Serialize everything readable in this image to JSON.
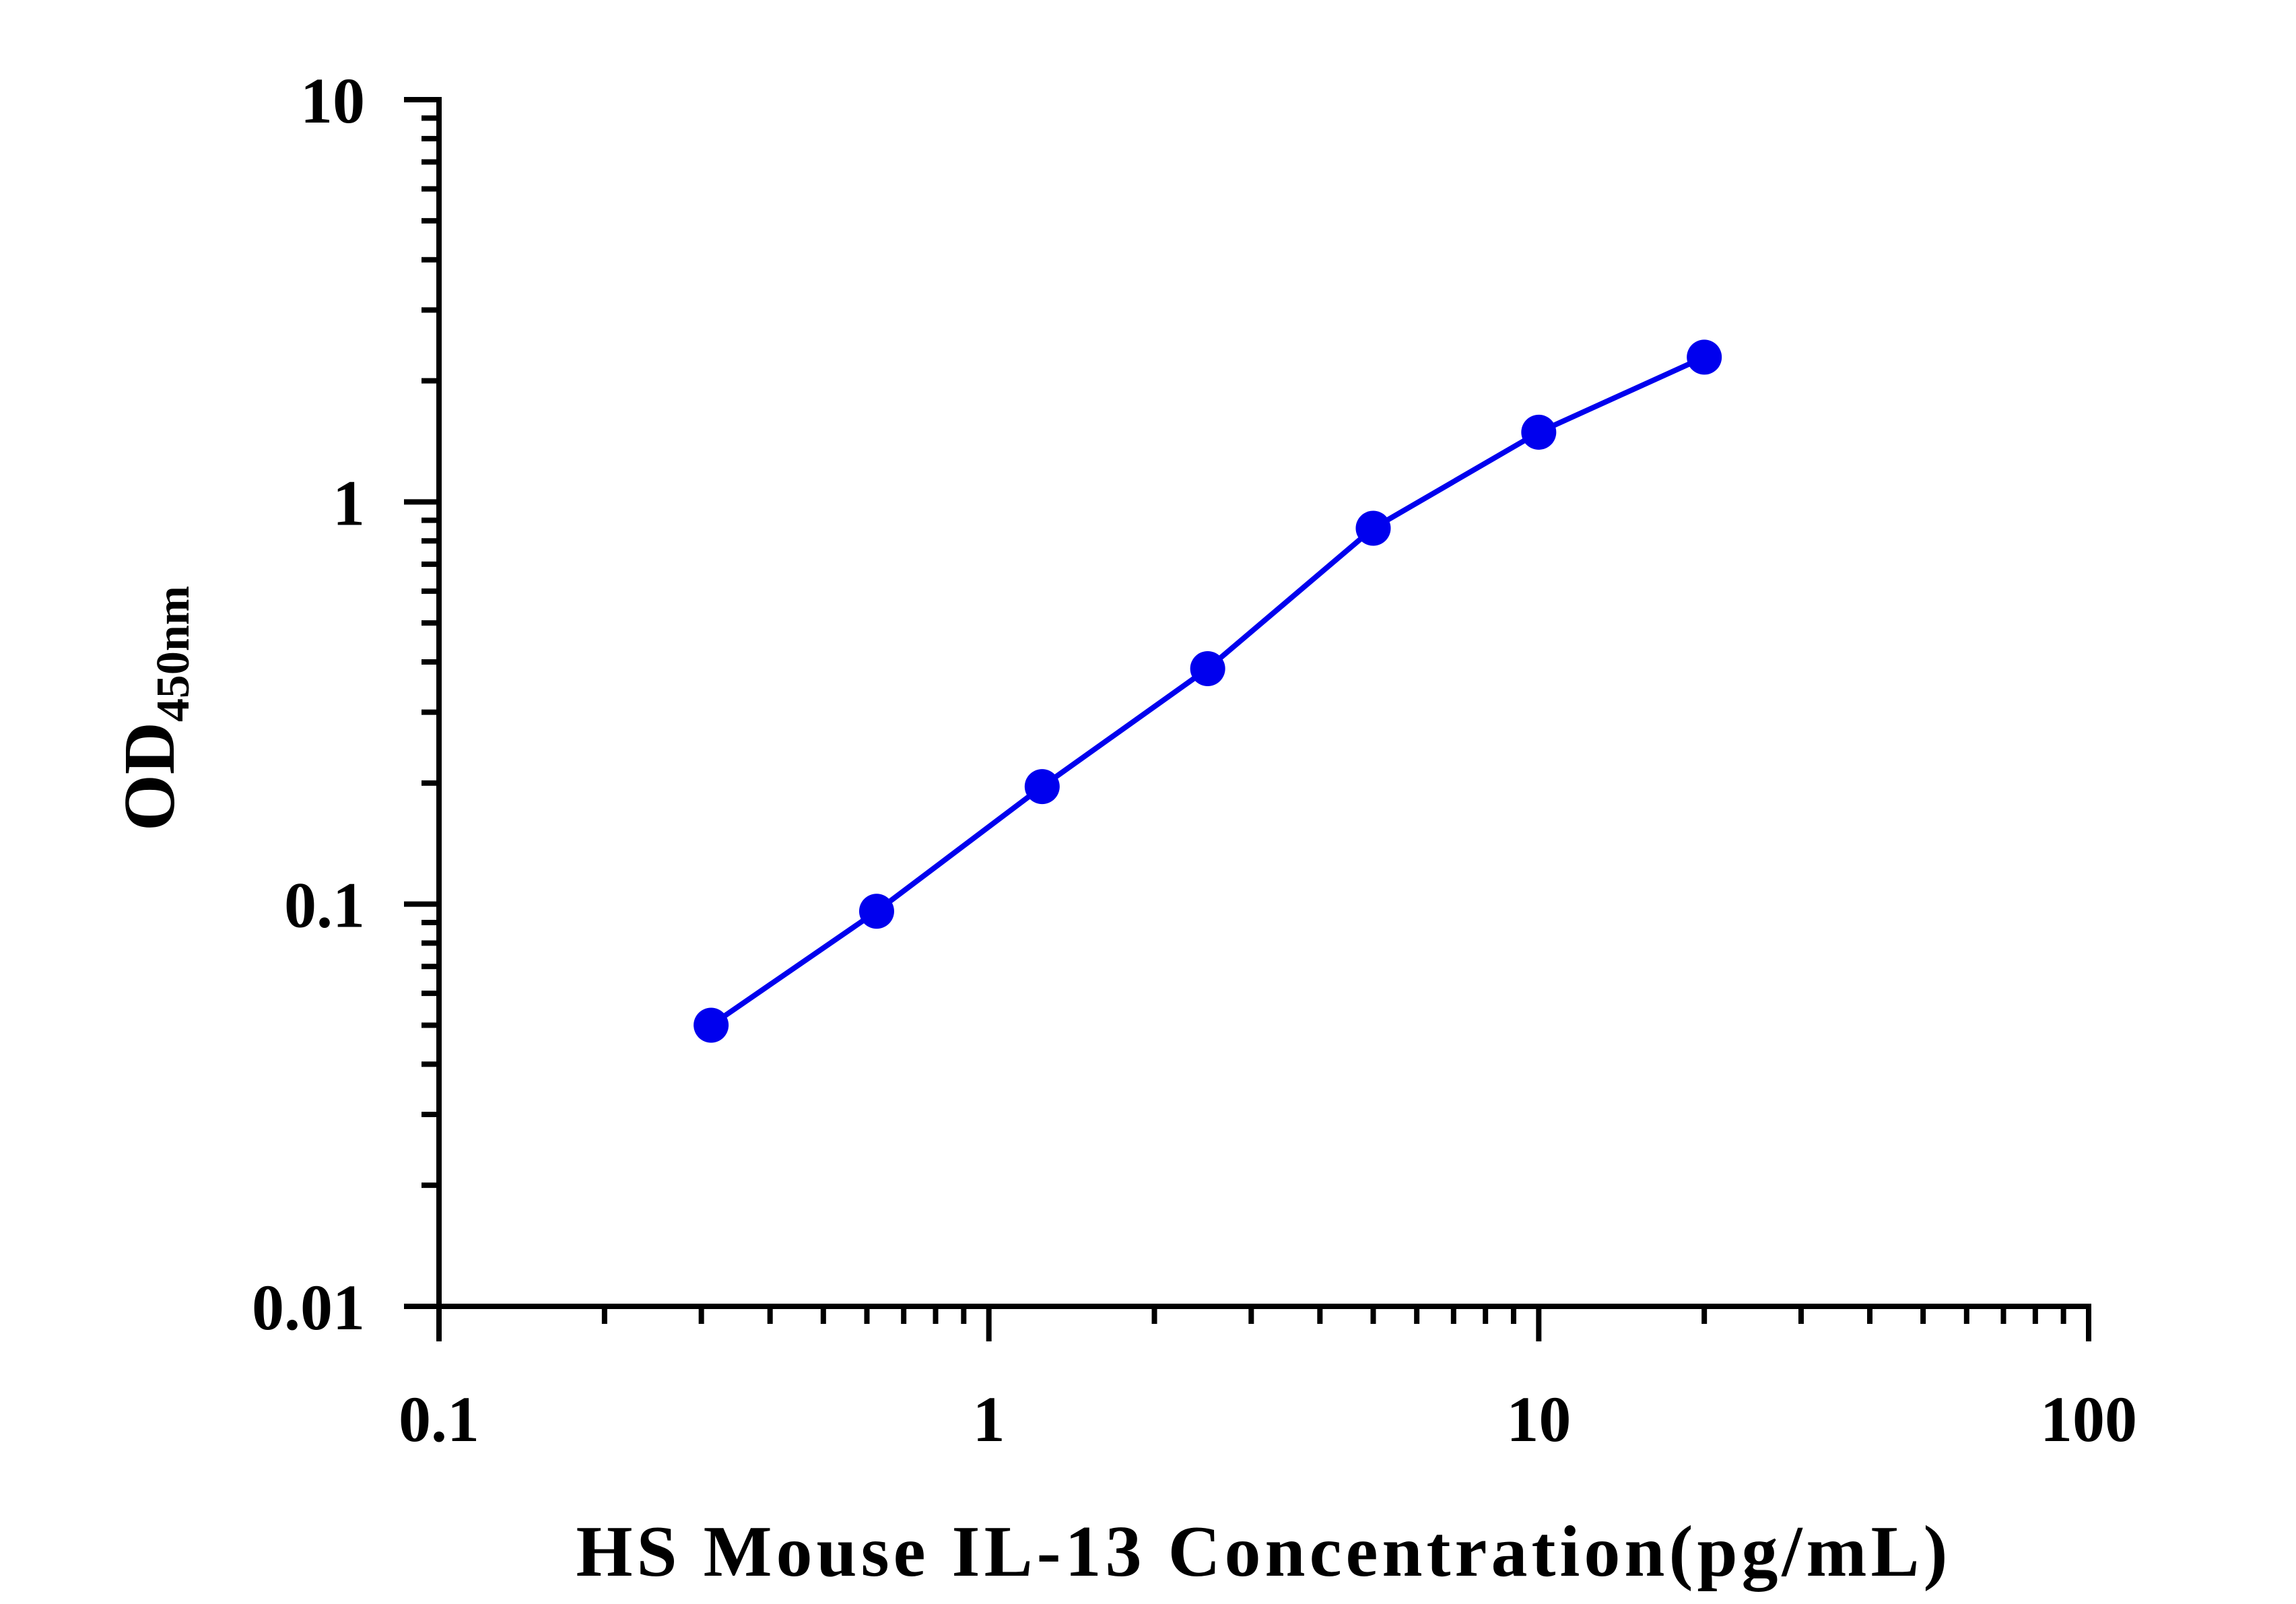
{
  "chart_data": {
    "type": "line",
    "title": "",
    "xlabel": "HS Mouse IL-13 Concentration(pg/mL)",
    "ylabel": {
      "main": "OD",
      "subscript": "450nm"
    },
    "x_scale": "log",
    "y_scale": "log",
    "xlim": [
      0.1,
      100
    ],
    "ylim": [
      0.01,
      10
    ],
    "x_ticks": [
      {
        "value": 0.1,
        "label": "0.1"
      },
      {
        "value": 1,
        "label": "1"
      },
      {
        "value": 10,
        "label": "10"
      },
      {
        "value": 100,
        "label": "100"
      }
    ],
    "y_ticks": [
      {
        "value": 0.01,
        "label": "0.01"
      },
      {
        "value": 0.1,
        "label": "0.1"
      },
      {
        "value": 1,
        "label": "1"
      },
      {
        "value": 10,
        "label": "10"
      }
    ],
    "grid": false,
    "legend": "none",
    "series": [
      {
        "color": "#0000ee",
        "marker": "circle",
        "x": [
          0.3125,
          0.625,
          1.25,
          2.5,
          5,
          10,
          20
        ],
        "y": [
          0.05,
          0.096,
          0.196,
          0.385,
          0.86,
          1.49,
          2.29
        ]
      }
    ]
  }
}
